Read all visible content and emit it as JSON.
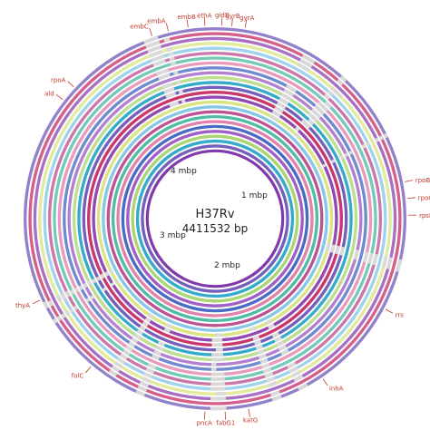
{
  "genome": {
    "name": "H37Rv",
    "length_label": "4411532 bp",
    "length_bp": 4411532
  },
  "scale_markers": [
    {
      "label": "1 mbp",
      "position_bp": 1000000
    },
    {
      "label": "2 mbp",
      "position_bp": 2000000
    },
    {
      "label": "3 mbp",
      "position_bp": 3000000
    },
    {
      "label": "4 mbp",
      "position_bp": 4000000
    }
  ],
  "colors": {
    "ring_palette": [
      "#c72a63",
      "#6d57b8",
      "#2aa6c9",
      "#a7d36a",
      "#9a56c2",
      "#3f63c0",
      "#e07aa5",
      "#46b8a0",
      "#b94a8f",
      "#7fc3e6",
      "#d8e37a",
      "#8b3fb0"
    ],
    "innermost_ring": "#7a2fa8",
    "gene_label": "#c0392b",
    "gap": "#d9d9d9"
  },
  "rings": {
    "count": 26
  },
  "gene_labels": [
    {
      "label": "embC",
      "angle_deg": -19
    },
    {
      "label": "embA",
      "angle_deg": -14
    },
    {
      "label": "embB",
      "angle_deg": -8
    },
    {
      "label": "ethA",
      "angle_deg": -3
    },
    {
      "label": "gidB",
      "angle_deg": 2
    },
    {
      "label": "gyrB",
      "angle_deg": 5
    },
    {
      "label": "gyrA",
      "angle_deg": 9
    },
    {
      "label": "rpoB",
      "angle_deg": 79
    },
    {
      "label": "rpoC",
      "angle_deg": 84
    },
    {
      "label": "rpsL",
      "angle_deg": 89
    },
    {
      "label": "rrs",
      "angle_deg": 118
    },
    {
      "label": "inhA",
      "angle_deg": 146
    },
    {
      "label": "katG",
      "angle_deg": 170
    },
    {
      "label": "fabG1",
      "angle_deg": 177
    },
    {
      "label": "pncA",
      "angle_deg": 183
    },
    {
      "label": "folC",
      "angle_deg": 220
    },
    {
      "label": "thyA",
      "angle_deg": 245
    },
    {
      "label": "ald",
      "angle_deg": 308
    },
    {
      "label": "rpoA",
      "angle_deg": 313
    }
  ]
}
